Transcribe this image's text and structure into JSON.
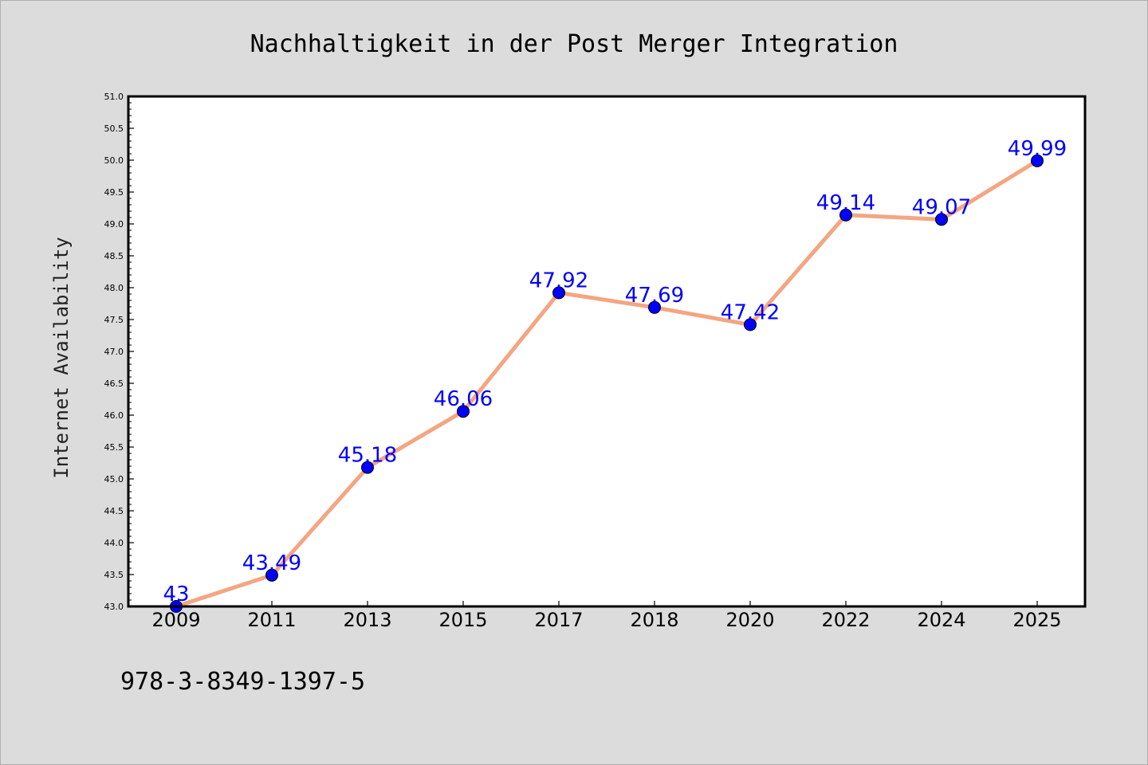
{
  "chart_data": {
    "type": "line",
    "title": "Nachhaltigkeit in der Post Merger Integration",
    "xlabel": "",
    "ylabel": "Internet Availability",
    "categories": [
      "2009",
      "2011",
      "2013",
      "2015",
      "2017",
      "2018",
      "2020",
      "2022",
      "2024",
      "2025"
    ],
    "values": [
      43,
      43.49,
      45.18,
      46.06,
      47.92,
      47.69,
      47.42,
      49.14,
      49.07,
      49.99
    ],
    "data_labels": [
      "43",
      "43.49",
      "45.18",
      "46.06",
      "47.92",
      "47.69",
      "47.42",
      "49.14",
      "49.07",
      "49.99"
    ],
    "ylim": [
      43.0,
      51.0
    ],
    "yticks": [
      "43.0",
      "43.5",
      "44.0",
      "44.5",
      "45.0",
      "45.5",
      "46.0",
      "46.5",
      "47.0",
      "47.5",
      "48.0",
      "48.5",
      "49.0",
      "49.5",
      "50.0",
      "50.5",
      "51.0"
    ],
    "grid": false,
    "line_color": "#f4a582",
    "marker_color": "#0000ff",
    "label_color": "#0000ff",
    "plot_background": "#ffffff",
    "figure_background": "#dcdcdc"
  },
  "annotation": "978-3-8349-1397-5"
}
